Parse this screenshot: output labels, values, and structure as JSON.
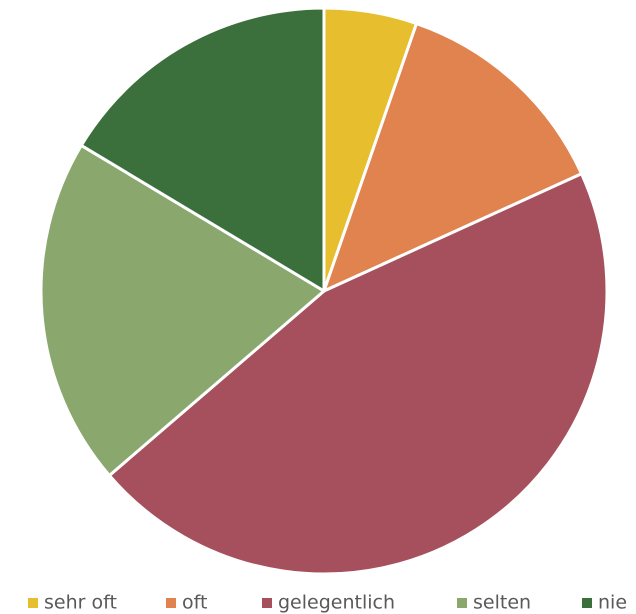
{
  "chart_data": {
    "type": "pie",
    "categories": [
      "sehr oft",
      "oft",
      "gelegentlich",
      "selten",
      "nie"
    ],
    "values": [
      5.3,
      12.9,
      45.5,
      19.9,
      16.4
    ],
    "colors": [
      "#e6be2e",
      "#e0834e",
      "#a5505c",
      "#8aa86e",
      "#3b703d"
    ],
    "legend": "bottom"
  }
}
